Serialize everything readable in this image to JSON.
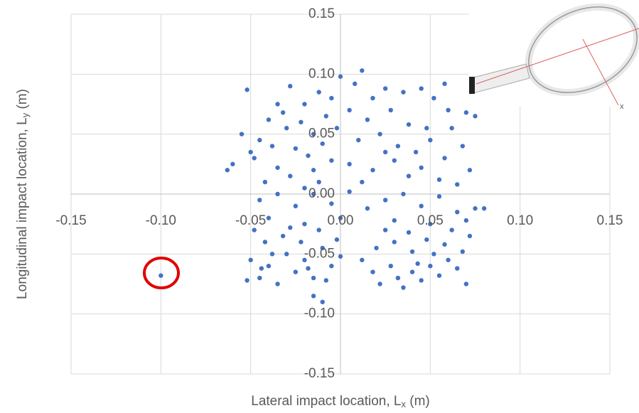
{
  "chart_data": {
    "type": "scatter",
    "x_label": [
      "Lateral impact location, L",
      "x",
      " (m)"
    ],
    "y_label": [
      "Longitudinal impact location, L",
      "y",
      " (m)"
    ],
    "annotation": "x",
    "xlim": [
      -0.15,
      0.15
    ],
    "ylim": [
      -0.15,
      0.15
    ],
    "xticks": [
      -0.15,
      {
        "value": -0.1,
        "label": "-0.10"
      },
      -0.05,
      {
        "value": 0,
        "label": "0.00"
      },
      0.05,
      {
        "value": 0.1,
        "label": "0.10"
      },
      0.15
    ],
    "yticks": [
      -0.15,
      {
        "value": -0.1,
        "label": "-0.10"
      },
      -0.05,
      {
        "value": 0,
        "label": "0.00"
      },
      0.05,
      {
        "value": 0.1,
        "label": "0.10"
      },
      0.15
    ],
    "grid": true,
    "x": [
      -0.052,
      -0.035,
      -0.028,
      -0.02,
      -0.012,
      -0.005,
      -0.04,
      -0.03,
      -0.022,
      -0.015,
      -0.008,
      -0.045,
      -0.038,
      -0.025,
      -0.018,
      -0.01,
      -0.002,
      -0.048,
      -0.035,
      -0.028,
      -0.015,
      -0.005,
      -0.042,
      -0.02,
      -0.055,
      -0.06,
      -0.063,
      -0.05,
      -0.032,
      -0.012,
      0.0,
      0.008,
      0.012,
      0.018,
      0.025,
      0.035,
      0.045,
      0.052,
      0.058,
      0.005,
      0.015,
      0.028,
      0.038,
      0.048,
      0.06,
      0.07,
      0.075,
      0.01,
      0.022,
      0.032,
      0.042,
      0.05,
      0.058,
      0.068,
      0.072,
      0.005,
      0.018,
      0.03,
      0.045,
      0.055,
      0.065,
      0.012,
      0.038,
      0.025,
      0.062,
      -0.045,
      -0.035,
      -0.025,
      -0.015,
      -0.005,
      0.005,
      0.015,
      0.025,
      0.035,
      0.045,
      0.055,
      0.065,
      0.075,
      0.08,
      -0.04,
      -0.02,
      0.0,
      0.03,
      0.05,
      0.07,
      -0.05,
      -0.045,
      -0.04,
      -0.035,
      -0.03,
      -0.025,
      -0.02,
      -0.015,
      -0.01,
      -0.005,
      0.0,
      -0.042,
      -0.032,
      -0.022,
      -0.012,
      -0.002,
      -0.048,
      -0.028,
      -0.038,
      -0.018,
      -0.008,
      -0.015,
      -0.01,
      -0.052,
      -0.044,
      0.012,
      0.018,
      0.022,
      0.028,
      0.032,
      0.035,
      0.04,
      0.045,
      0.05,
      0.055,
      0.06,
      0.065,
      0.07,
      0.02,
      0.03,
      0.04,
      0.048,
      0.058,
      0.068,
      0.072,
      0.025,
      0.038,
      0.052,
      0.062,
      0.043,
      -0.1
    ],
    "series": [
      {
        "color": "#4472c4",
        "values": [
          0.087,
          0.075,
          0.09,
          0.075,
          0.085,
          0.08,
          0.062,
          0.055,
          0.06,
          0.05,
          0.065,
          0.045,
          0.04,
          0.038,
          0.032,
          0.042,
          0.055,
          0.03,
          0.022,
          0.015,
          0.02,
          0.028,
          0.01,
          0.005,
          0.05,
          0.025,
          0.02,
          0.035,
          0.068,
          0.01,
          0.098,
          0.092,
          0.103,
          0.08,
          0.088,
          0.085,
          0.088,
          0.08,
          0.092,
          0.07,
          0.062,
          0.07,
          0.058,
          0.055,
          0.07,
          0.068,
          0.065,
          0.045,
          0.05,
          0.04,
          0.035,
          0.045,
          0.03,
          0.04,
          0.02,
          0.025,
          0.02,
          0.028,
          0.022,
          0.012,
          0.008,
          0.01,
          0.015,
          0.035,
          0.055,
          -0.005,
          0.0,
          -0.01,
          0.0,
          -0.008,
          0.002,
          -0.012,
          -0.005,
          0.0,
          -0.01,
          -0.002,
          -0.015,
          -0.012,
          -0.012,
          -0.02,
          -0.025,
          -0.02,
          -0.022,
          -0.025,
          -0.022,
          -0.055,
          -0.07,
          -0.06,
          -0.075,
          -0.05,
          -0.065,
          -0.055,
          -0.07,
          -0.045,
          -0.06,
          -0.052,
          -0.04,
          -0.035,
          -0.04,
          -0.03,
          -0.038,
          -0.03,
          -0.028,
          -0.05,
          -0.062,
          -0.072,
          -0.085,
          -0.09,
          -0.072,
          -0.062,
          -0.055,
          -0.065,
          -0.075,
          -0.06,
          -0.07,
          -0.078,
          -0.065,
          -0.072,
          -0.06,
          -0.068,
          -0.055,
          -0.062,
          -0.075,
          -0.045,
          -0.04,
          -0.048,
          -0.038,
          -0.042,
          -0.048,
          -0.035,
          -0.03,
          -0.032,
          -0.05,
          -0.03,
          -0.058,
          -0.068
        ]
      }
    ]
  }
}
